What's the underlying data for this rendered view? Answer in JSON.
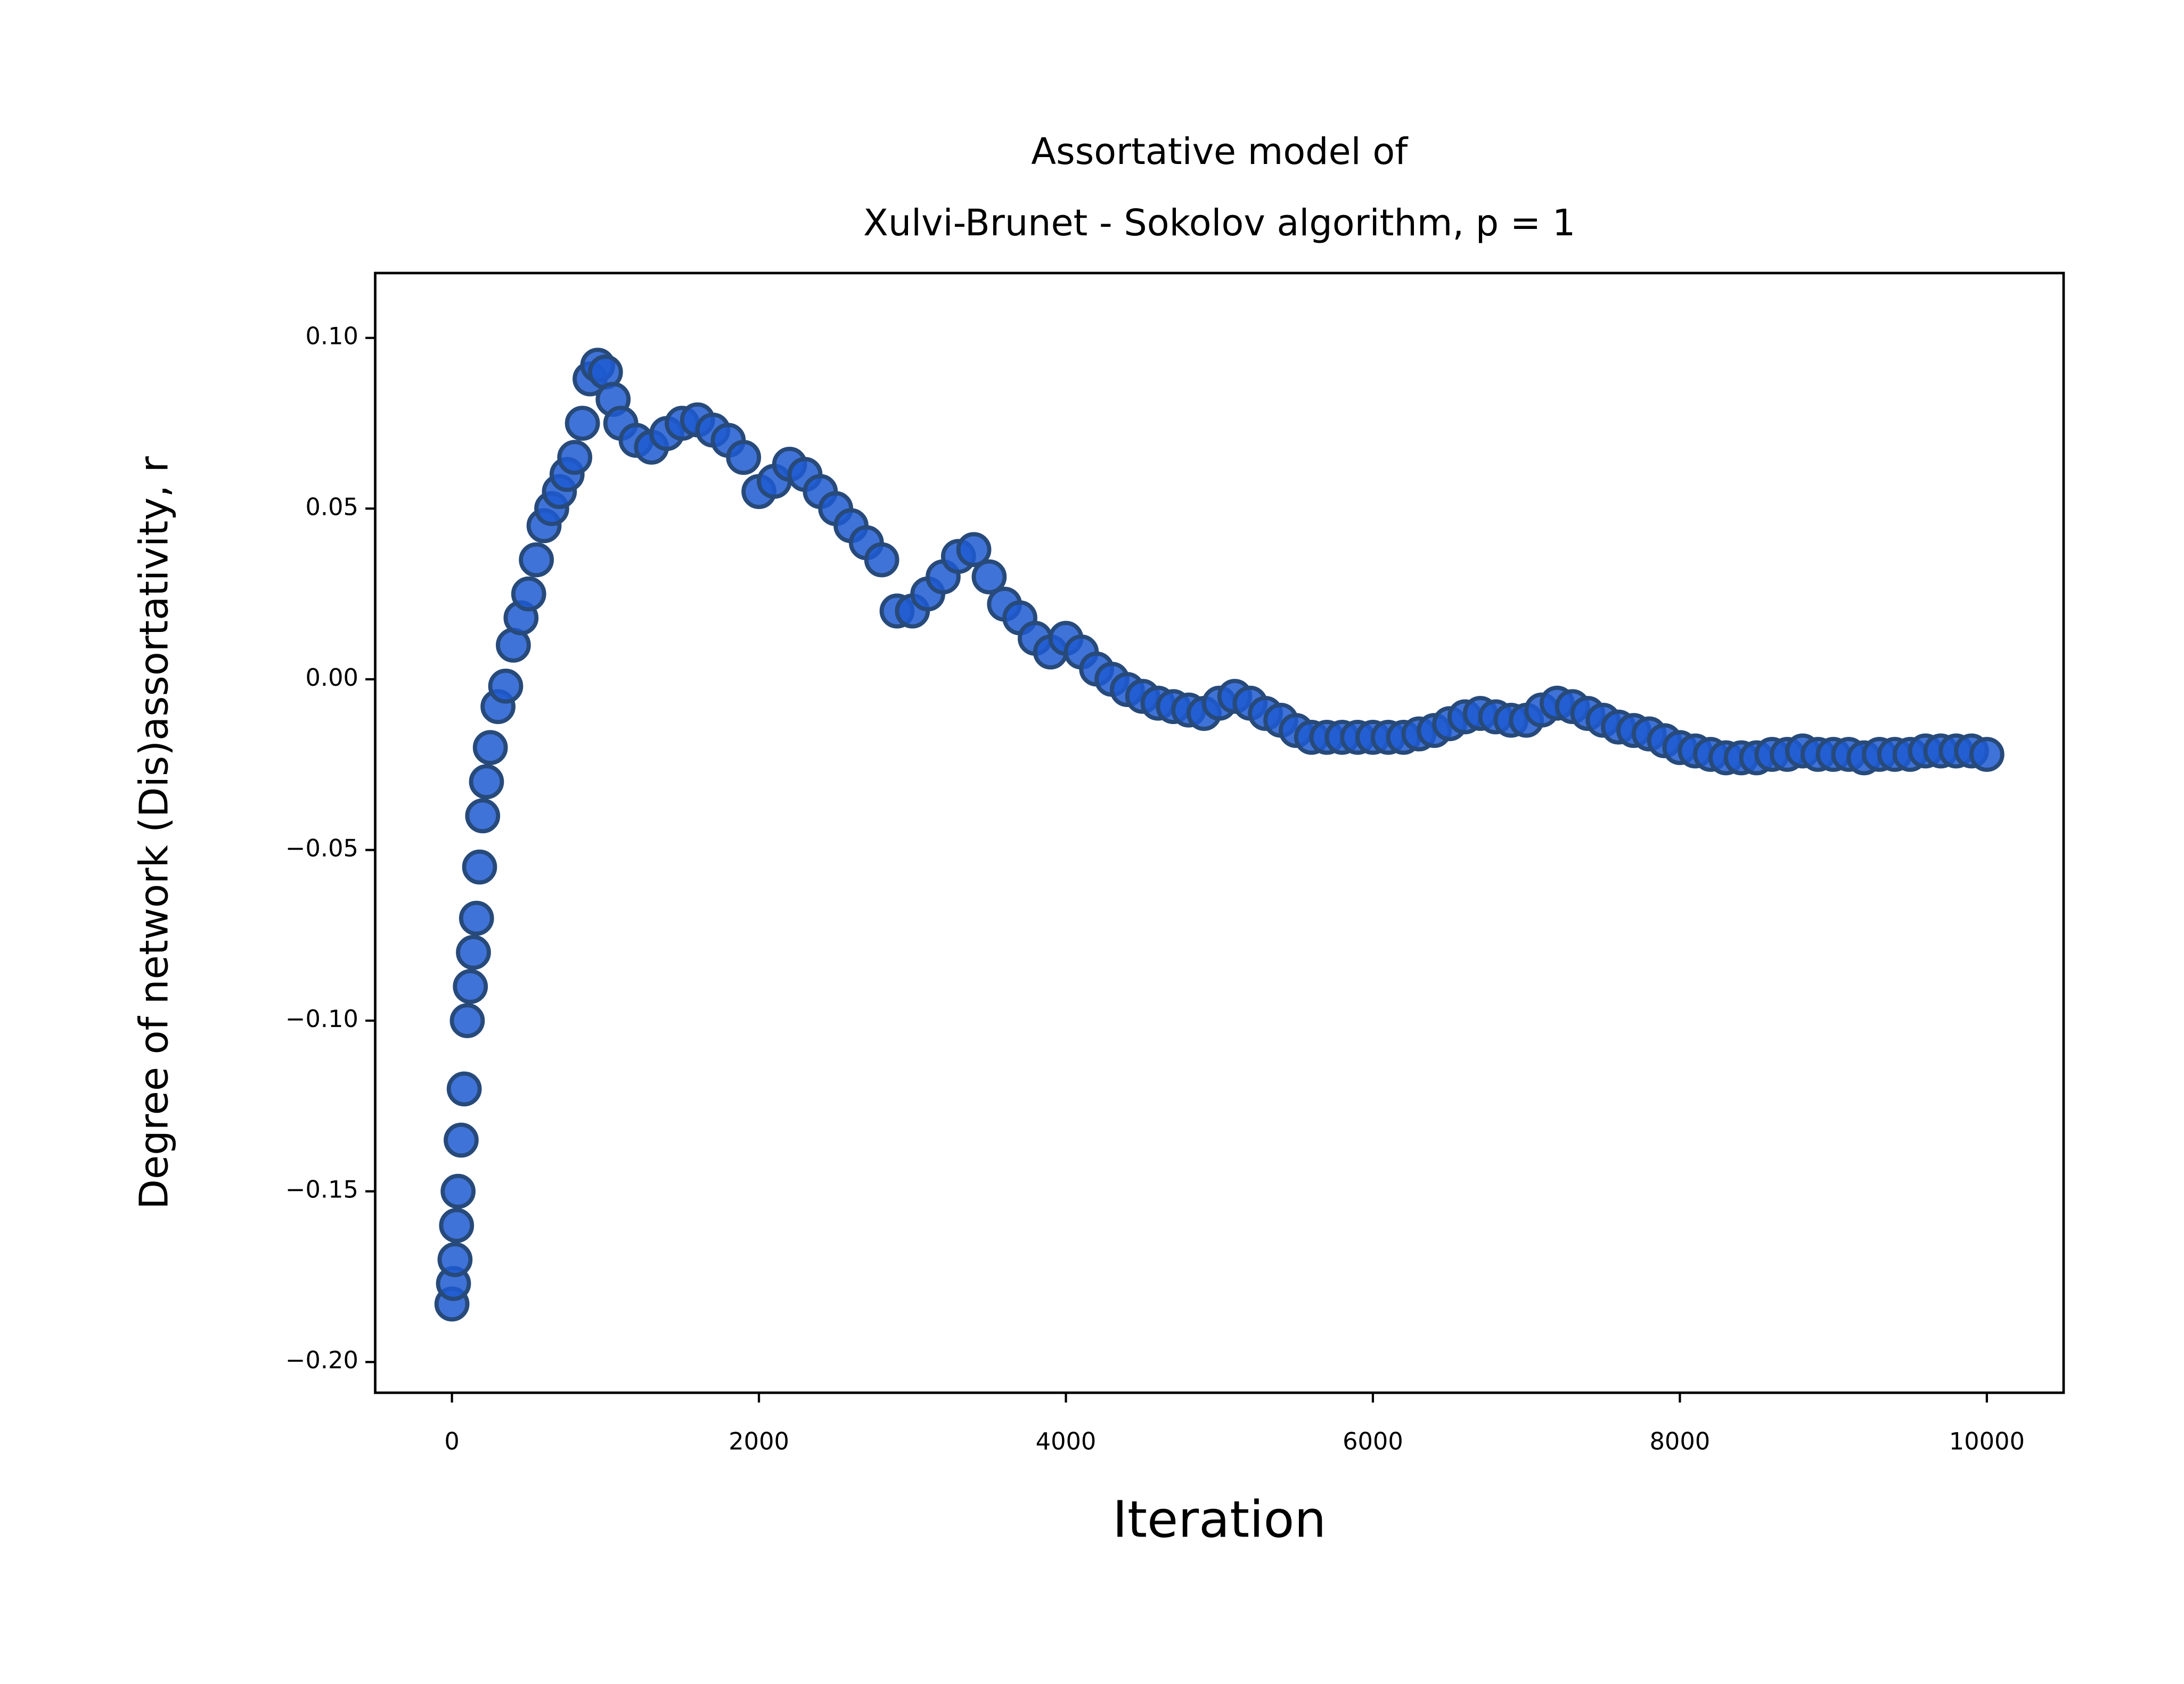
{
  "chart_data": {
    "type": "scatter",
    "title": [
      "Assortative model of",
      "Xulvi-Brunet - Sokolov algorithm, p = 1"
    ],
    "x_label": "Iteration",
    "y_label": "Degree of network (Dis)assortativity, r",
    "color": "#1f5bd1",
    "edge_color": "#274a7a",
    "xlim": [
      -500,
      10500
    ],
    "ylim": [
      -0.209,
      0.119
    ],
    "xticks": [
      0,
      2000,
      4000,
      6000,
      8000,
      10000
    ],
    "yticks": [
      {
        "value": -0.2,
        "label": "−0.20"
      },
      {
        "value": -0.15,
        "label": "−0.15"
      },
      {
        "value": -0.1,
        "label": "−0.10"
      },
      {
        "value": -0.05,
        "label": "−0.05"
      },
      {
        "value": 0,
        "label": "0.00"
      },
      {
        "value": 0.05,
        "label": "0.05"
      },
      {
        "value": 0.1,
        "label": "0.10"
      }
    ],
    "x": [
      0,
      10,
      20,
      30,
      40,
      60,
      80,
      100,
      120,
      140,
      160,
      180,
      200,
      225,
      250,
      300,
      350,
      400,
      450,
      500,
      550,
      600,
      650,
      700,
      750,
      800,
      850,
      900,
      950,
      1000,
      1050,
      1100,
      1200,
      1300,
      1400,
      1500,
      1600,
      1700,
      1800,
      1900,
      2000,
      2100,
      2200,
      2300,
      2400,
      2500,
      2600,
      2700,
      2800,
      2900,
      3000,
      3100,
      3200,
      3300,
      3400,
      3500,
      3600,
      3700,
      3800,
      3900,
      4000,
      4100,
      4200,
      4300,
      4400,
      4500,
      4600,
      4700,
      4800,
      4900,
      5000,
      5100,
      5200,
      5300,
      5400,
      5500,
      5600,
      5700,
      5800,
      5900,
      6000,
      6100,
      6200,
      6300,
      6400,
      6500,
      6600,
      6700,
      6800,
      6900,
      7000,
      7100,
      7200,
      7300,
      7400,
      7500,
      7600,
      7700,
      7800,
      7900,
      8000,
      8100,
      8200,
      8300,
      8400,
      8500,
      8600,
      8700,
      8800,
      8900,
      9000,
      9100,
      9200,
      9300,
      9400,
      9500,
      9600,
      9700,
      9800,
      9900,
      10000
    ],
    "values": [
      -0.183,
      -0.177,
      -0.17,
      -0.16,
      -0.15,
      -0.135,
      -0.12,
      -0.1,
      -0.09,
      -0.08,
      -0.07,
      -0.055,
      -0.04,
      -0.03,
      -0.02,
      -0.008,
      -0.002,
      0.01,
      0.018,
      0.025,
      0.035,
      0.045,
      0.05,
      0.055,
      0.06,
      0.065,
      0.075,
      0.088,
      0.092,
      0.09,
      0.082,
      0.075,
      0.07,
      0.068,
      0.072,
      0.075,
      0.076,
      0.073,
      0.07,
      0.065,
      0.055,
      0.058,
      0.063,
      0.06,
      0.055,
      0.05,
      0.045,
      0.04,
      0.035,
      0.02,
      0.02,
      0.025,
      0.03,
      0.036,
      0.038,
      0.03,
      0.022,
      0.018,
      0.012,
      0.008,
      0.012,
      0.008,
      0.003,
      0.0,
      -0.003,
      -0.005,
      -0.007,
      -0.008,
      -0.009,
      -0.01,
      -0.007,
      -0.005,
      -0.007,
      -0.01,
      -0.012,
      -0.015,
      -0.017,
      -0.017,
      -0.017,
      -0.017,
      -0.017,
      -0.017,
      -0.017,
      -0.016,
      -0.015,
      -0.013,
      -0.011,
      -0.01,
      -0.011,
      -0.012,
      -0.012,
      -0.009,
      -0.007,
      -0.008,
      -0.01,
      -0.012,
      -0.014,
      -0.015,
      -0.016,
      -0.018,
      -0.02,
      -0.021,
      -0.022,
      -0.023,
      -0.023,
      -0.023,
      -0.022,
      -0.022,
      -0.021,
      -0.022,
      -0.022,
      -0.022,
      -0.023,
      -0.022,
      -0.022,
      -0.022,
      -0.021,
      -0.021,
      -0.021,
      -0.021,
      -0.022
    ]
  }
}
